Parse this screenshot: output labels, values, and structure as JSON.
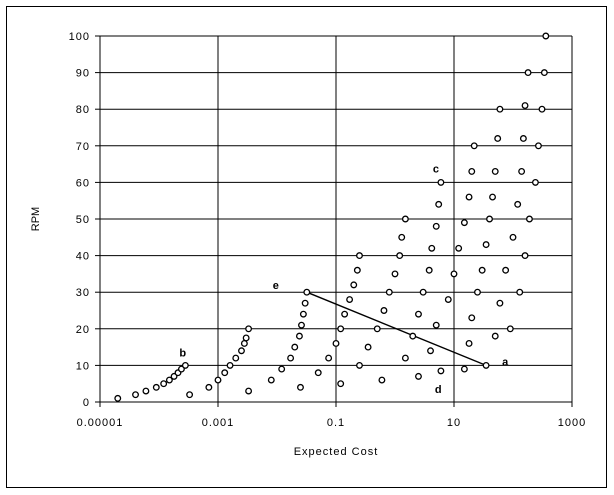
{
  "chart_data": {
    "type": "scatter",
    "title": "",
    "xlabel": "Expected Cost",
    "ylabel": "RPM",
    "xscale": "log",
    "xlim": [
      1e-05,
      1000
    ],
    "ylim": [
      0,
      100
    ],
    "xticks": [
      1e-05,
      0.001,
      0.1,
      10,
      1000
    ],
    "xtick_labels": [
      "0.00001",
      "0.001",
      "0.1",
      "10",
      "1000"
    ],
    "yticks": [
      0,
      10,
      20,
      30,
      40,
      50,
      60,
      70,
      80,
      90,
      100
    ],
    "ytick_labels": [
      "0",
      "10",
      "20",
      "30",
      "40",
      "50",
      "60",
      "70",
      "80",
      "90",
      "100"
    ],
    "grid": true,
    "legend": "none",
    "marker": "open circle",
    "series": [
      {
        "points": [
          [
            2e-05,
            1
          ],
          [
            4e-05,
            2
          ],
          [
            6e-05,
            3
          ],
          [
            9e-05,
            4
          ],
          [
            0.00012,
            5
          ],
          [
            0.00015,
            6
          ],
          [
            0.00018,
            7
          ],
          [
            0.00021,
            8
          ],
          [
            0.00024,
            9
          ],
          [
            0.00028,
            10
          ],
          [
            0.00033,
            2
          ],
          [
            0.0007,
            4
          ],
          [
            0.001,
            6
          ],
          [
            0.0013,
            8
          ],
          [
            0.0016,
            10
          ],
          [
            0.002,
            12
          ],
          [
            0.0025,
            14
          ],
          [
            0.0028,
            16
          ],
          [
            0.003,
            17.5
          ],
          [
            0.0033,
            20
          ],
          [
            0.0033,
            3
          ],
          [
            0.008,
            6
          ],
          [
            0.012,
            9
          ],
          [
            0.017,
            12
          ],
          [
            0.02,
            15
          ],
          [
            0.024,
            18
          ],
          [
            0.026,
            21
          ],
          [
            0.028,
            24
          ],
          [
            0.03,
            27
          ],
          [
            0.032,
            30
          ],
          [
            0.025,
            4
          ],
          [
            0.05,
            8
          ],
          [
            0.075,
            12
          ],
          [
            0.1,
            16
          ],
          [
            0.12,
            20
          ],
          [
            0.14,
            24
          ],
          [
            0.17,
            28
          ],
          [
            0.2,
            32
          ],
          [
            0.23,
            36
          ],
          [
            0.25,
            40
          ],
          [
            0.12,
            5
          ],
          [
            0.25,
            10
          ],
          [
            0.35,
            15
          ],
          [
            0.5,
            20
          ],
          [
            0.65,
            25
          ],
          [
            0.8,
            30
          ],
          [
            1.0,
            35
          ],
          [
            1.2,
            40
          ],
          [
            1.3,
            45
          ],
          [
            1.5,
            50
          ],
          [
            0.6,
            6
          ],
          [
            1.5,
            12
          ],
          [
            2.0,
            18
          ],
          [
            2.5,
            24
          ],
          [
            3.0,
            30
          ],
          [
            3.8,
            36
          ],
          [
            4.2,
            42
          ],
          [
            5.0,
            48
          ],
          [
            5.5,
            54
          ],
          [
            6.0,
            60
          ],
          [
            2.5,
            7
          ],
          [
            4.0,
            14
          ],
          [
            5.0,
            21
          ],
          [
            6.0,
            8.5
          ],
          [
            8.0,
            28
          ],
          [
            10,
            35
          ],
          [
            12,
            42
          ],
          [
            15,
            49
          ],
          [
            18,
            56
          ],
          [
            20,
            63
          ],
          [
            22,
            70
          ],
          [
            15,
            9
          ],
          [
            18,
            16
          ],
          [
            20,
            23
          ],
          [
            25,
            30
          ],
          [
            30,
            36
          ],
          [
            35,
            43
          ],
          [
            40,
            50
          ],
          [
            45,
            56
          ],
          [
            50,
            63
          ],
          [
            55,
            72
          ],
          [
            60,
            80
          ],
          [
            35,
            10
          ],
          [
            50,
            18
          ],
          [
            60,
            27
          ],
          [
            75,
            36
          ],
          [
            100,
            45
          ],
          [
            120,
            54
          ],
          [
            140,
            63
          ],
          [
            150,
            72
          ],
          [
            160,
            81
          ],
          [
            180,
            90
          ],
          [
            90,
            20
          ],
          [
            130,
            30
          ],
          [
            160,
            40
          ],
          [
            190,
            50
          ],
          [
            240,
            60
          ],
          [
            270,
            70
          ],
          [
            310,
            80
          ],
          [
            340,
            90
          ],
          [
            360,
            100
          ]
        ]
      }
    ],
    "segments": [
      {
        "from": [
          0.032,
          30
        ],
        "to": [
          35,
          10
        ]
      }
    ],
    "annotations": [
      {
        "text": "a",
        "x": 35,
        "y": 10
      },
      {
        "text": "b",
        "x": 0.00028,
        "y": 10
      },
      {
        "text": "c",
        "x": 6.0,
        "y": 60
      },
      {
        "text": "d",
        "x": 6.0,
        "y": 8.5
      },
      {
        "text": "e",
        "x": 0.032,
        "y": 30
      }
    ]
  }
}
